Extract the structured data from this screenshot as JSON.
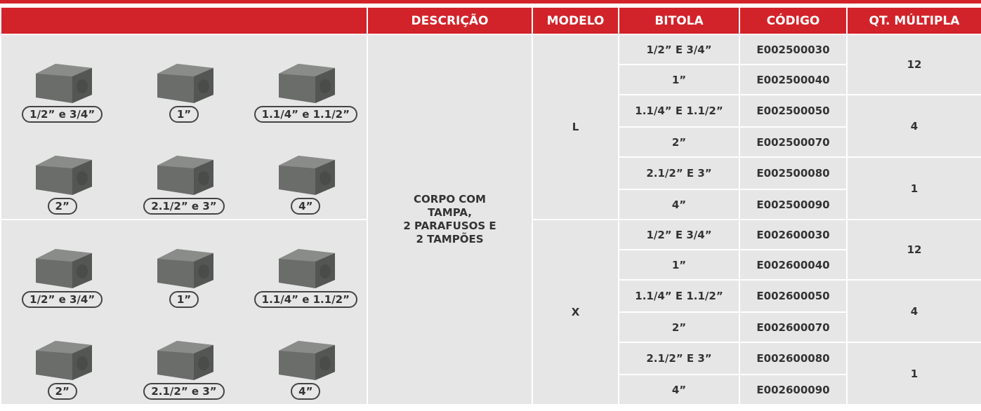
{
  "header": {
    "columns": [
      "DESCRIÇÃO",
      "MODELO",
      "BITOLA",
      "CÓDIGO",
      "QT. MÚLTIPLA"
    ]
  },
  "image_groups": [
    {
      "labels": [
        "1/2” e 3/4”",
        "1”",
        "1.1/4” e 1.1/2”",
        "2”",
        "2.1/2” e 3”",
        "4”"
      ]
    },
    {
      "labels": [
        "1/2” e 3/4”",
        "1”",
        "1.1/4” e 1.1/2”",
        "2”",
        "2.1/2” e 3”",
        "4”"
      ]
    }
  ],
  "description": [
    "CORPO COM",
    "TAMPA,",
    "2 PARAFUSOS E",
    "2 TAMPÕES"
  ],
  "models": [
    {
      "model": "L",
      "groups": [
        {
          "qt": 12,
          "items": [
            {
              "bitola": "1/2” E 3/4”",
              "codigo": "E002500030"
            },
            {
              "bitola": "1”",
              "codigo": "E002500040"
            }
          ]
        },
        {
          "qt": 4,
          "items": [
            {
              "bitola": "1.1/4” E 1.1/2”",
              "codigo": "E002500050"
            },
            {
              "bitola": "2”",
              "codigo": "E002500070"
            }
          ]
        },
        {
          "qt": 1,
          "items": [
            {
              "bitola": "2.1/2” E 3”",
              "codigo": "E002500080"
            },
            {
              "bitola": "4”",
              "codigo": "E002500090"
            }
          ]
        }
      ]
    },
    {
      "model": "X",
      "groups": [
        {
          "qt": 12,
          "items": [
            {
              "bitola": "1/2” E 3/4”",
              "codigo": "E002600030"
            },
            {
              "bitola": "1”",
              "codigo": "E002600040"
            }
          ]
        },
        {
          "qt": 4,
          "items": [
            {
              "bitola": "1.1/4” E 1.1/2”",
              "codigo": "E002600050"
            },
            {
              "bitola": "2”",
              "codigo": "E002600070"
            }
          ]
        },
        {
          "qt": 1,
          "items": [
            {
              "bitola": "2.1/2” E 3”",
              "codigo": "E002600080"
            },
            {
              "bitola": "4”",
              "codigo": "E002600090"
            }
          ]
        }
      ]
    }
  ]
}
